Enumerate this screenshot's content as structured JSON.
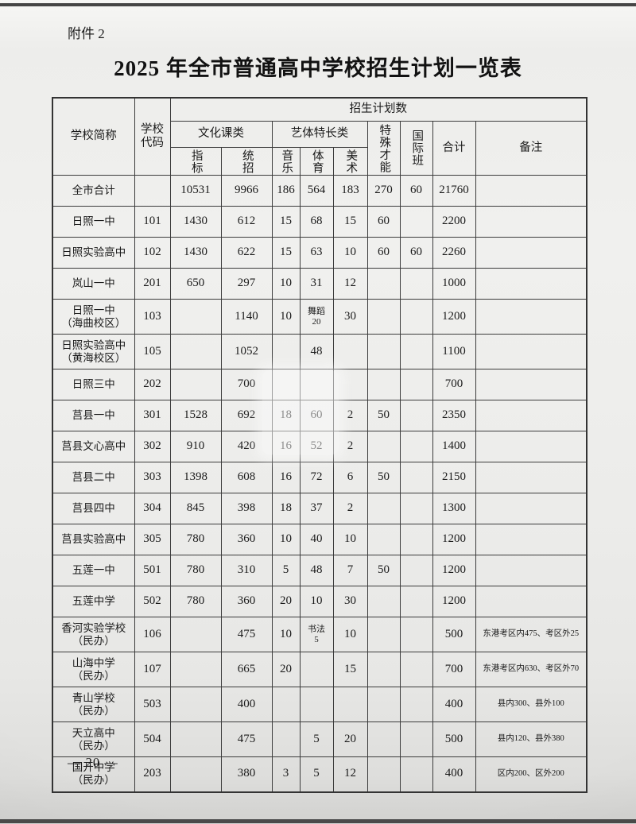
{
  "page": {
    "attachment_label": "附件 2",
    "title": "2025 年全市普通高中学校招生计划一览表",
    "page_number": "— 20 —"
  },
  "table": {
    "header": {
      "school_name": "学校简称",
      "school_code": "学校\n代码",
      "plan_group": "招生计划数",
      "culture_group": "文化课类",
      "culture_cols": [
        "指标",
        "统招"
      ],
      "arts_group": "艺体特长类",
      "arts_cols": [
        "音乐",
        "体育",
        "美术"
      ],
      "special": "特殊才能",
      "international": "国际班",
      "total": "合计",
      "remark": "备注"
    },
    "rows": [
      {
        "name": "全市合计",
        "code": "",
        "zhibiao": "10531",
        "tongzhao": "9966",
        "music": "186",
        "sports": "564",
        "art": "183",
        "special": "270",
        "intl": "60",
        "total": "21760",
        "remark": ""
      },
      {
        "name": "日照一中",
        "code": "101",
        "zhibiao": "1430",
        "tongzhao": "612",
        "music": "15",
        "sports": "68",
        "art": "15",
        "special": "60",
        "intl": "",
        "total": "2200",
        "remark": ""
      },
      {
        "name": "日照实验高中",
        "code": "102",
        "zhibiao": "1430",
        "tongzhao": "622",
        "music": "15",
        "sports": "63",
        "art": "10",
        "special": "60",
        "intl": "60",
        "total": "2260",
        "remark": ""
      },
      {
        "name": "岚山一中",
        "code": "201",
        "zhibiao": "650",
        "tongzhao": "297",
        "music": "10",
        "sports": "31",
        "art": "12",
        "special": "",
        "intl": "",
        "total": "1000",
        "remark": ""
      },
      {
        "name": "日照一中\n（海曲校区）",
        "code": "103",
        "zhibiao": "",
        "tongzhao": "1140",
        "music": "10",
        "sports": "舞蹈\n20",
        "art": "30",
        "special": "",
        "intl": "",
        "total": "1200",
        "remark": ""
      },
      {
        "name": "日照实验高中\n（黄海校区）",
        "code": "105",
        "zhibiao": "",
        "tongzhao": "1052",
        "music": "",
        "sports": "48",
        "art": "",
        "special": "",
        "intl": "",
        "total": "1100",
        "remark": ""
      },
      {
        "name": "日照三中",
        "code": "202",
        "zhibiao": "",
        "tongzhao": "700",
        "music": "",
        "sports": "",
        "art": "",
        "special": "",
        "intl": "",
        "total": "700",
        "remark": ""
      },
      {
        "name": "莒县一中",
        "code": "301",
        "zhibiao": "1528",
        "tongzhao": "692",
        "music": "18",
        "sports": "60",
        "art": "2",
        "special": "50",
        "intl": "",
        "total": "2350",
        "remark": ""
      },
      {
        "name": "莒县文心高中",
        "code": "302",
        "zhibiao": "910",
        "tongzhao": "420",
        "music": "16",
        "sports": "52",
        "art": "2",
        "special": "",
        "intl": "",
        "total": "1400",
        "remark": ""
      },
      {
        "name": "莒县二中",
        "code": "303",
        "zhibiao": "1398",
        "tongzhao": "608",
        "music": "16",
        "sports": "72",
        "art": "6",
        "special": "50",
        "intl": "",
        "total": "2150",
        "remark": ""
      },
      {
        "name": "莒县四中",
        "code": "304",
        "zhibiao": "845",
        "tongzhao": "398",
        "music": "18",
        "sports": "37",
        "art": "2",
        "special": "",
        "intl": "",
        "total": "1300",
        "remark": ""
      },
      {
        "name": "莒县实验高中",
        "code": "305",
        "zhibiao": "780",
        "tongzhao": "360",
        "music": "10",
        "sports": "40",
        "art": "10",
        "special": "",
        "intl": "",
        "total": "1200",
        "remark": ""
      },
      {
        "name": "五莲一中",
        "code": "501",
        "zhibiao": "780",
        "tongzhao": "310",
        "music": "5",
        "sports": "48",
        "art": "7",
        "special": "50",
        "intl": "",
        "total": "1200",
        "remark": ""
      },
      {
        "name": "五莲中学",
        "code": "502",
        "zhibiao": "780",
        "tongzhao": "360",
        "music": "20",
        "sports": "10",
        "art": "30",
        "special": "",
        "intl": "",
        "total": "1200",
        "remark": ""
      },
      {
        "name": "香河实验学校\n（民办）",
        "code": "106",
        "zhibiao": "",
        "tongzhao": "475",
        "music": "10",
        "sports": "书法\n5",
        "art": "10",
        "special": "",
        "intl": "",
        "total": "500",
        "remark": "东港考区内475、考区外25"
      },
      {
        "name": "山海中学\n（民办）",
        "code": "107",
        "zhibiao": "",
        "tongzhao": "665",
        "music": "20",
        "sports": "",
        "art": "15",
        "special": "",
        "intl": "",
        "total": "700",
        "remark": "东港考区内630、考区外70"
      },
      {
        "name": "青山学校\n（民办）",
        "code": "503",
        "zhibiao": "",
        "tongzhao": "400",
        "music": "",
        "sports": "",
        "art": "",
        "special": "",
        "intl": "",
        "total": "400",
        "remark": "县内300、县外100"
      },
      {
        "name": "天立高中\n（民办）",
        "code": "504",
        "zhibiao": "",
        "tongzhao": "475",
        "music": "",
        "sports": "5",
        "art": "20",
        "special": "",
        "intl": "",
        "total": "500",
        "remark": "县内120、县外380"
      },
      {
        "name": "国开中学\n（民办）",
        "code": "203",
        "zhibiao": "",
        "tongzhao": "380",
        "music": "3",
        "sports": "5",
        "art": "12",
        "special": "",
        "intl": "",
        "total": "400",
        "remark": "区内200、区外200"
      }
    ]
  }
}
